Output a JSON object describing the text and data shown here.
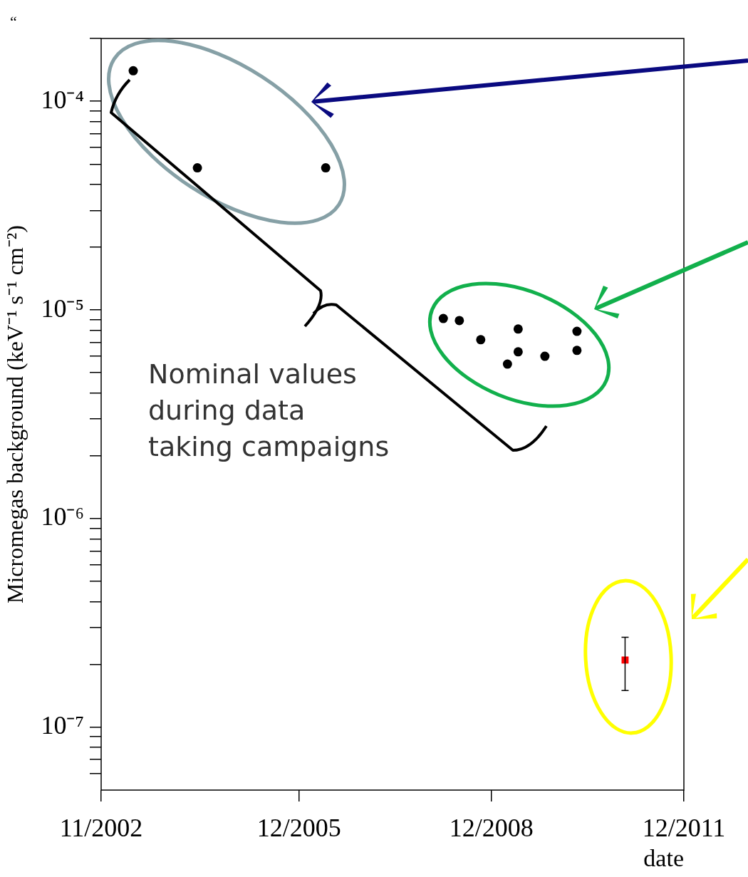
{
  "chart_data": {
    "type": "scatter",
    "ylabel": "Micromegas background (keV⁻¹ s⁻¹ cm⁻²)",
    "xlabel": "date",
    "annotations": [
      "Nominal values during data taking campaigns",
      "“"
    ],
    "log": "y",
    "grid": false,
    "legend": false,
    "xlim": [
      "2002-11",
      "2011-12"
    ],
    "xticks": [
      {
        "value": "2002-11",
        "label": "11/2002"
      },
      {
        "value": "2005-12",
        "label": "12/2005"
      },
      {
        "value": "2008-12",
        "label": "12/2008"
      },
      {
        "value": "2011-12",
        "label": "12/2011"
      }
    ],
    "ylim": [
      5e-08,
      0.0002
    ],
    "yticks": [
      {
        "value": 6e-08,
        "label": null
      },
      {
        "value": 7e-08,
        "label": null
      },
      {
        "value": 8e-08,
        "label": null
      },
      {
        "value": 9e-08,
        "label": null
      },
      {
        "value": 1e-07,
        "label": "10⁻⁷"
      },
      {
        "value": 2e-07,
        "label": null
      },
      {
        "value": 3e-07,
        "label": null
      },
      {
        "value": 4e-07,
        "label": null
      },
      {
        "value": 5e-07,
        "label": null
      },
      {
        "value": 6e-07,
        "label": null
      },
      {
        "value": 7e-07,
        "label": null
      },
      {
        "value": 8e-07,
        "label": null
      },
      {
        "value": 9e-07,
        "label": null
      },
      {
        "value": 1e-06,
        "label": "10⁻⁶"
      },
      {
        "value": 2e-06,
        "label": null
      },
      {
        "value": 3e-06,
        "label": null
      },
      {
        "value": 4e-06,
        "label": null
      },
      {
        "value": 5e-06,
        "label": null
      },
      {
        "value": 6e-06,
        "label": null
      },
      {
        "value": 7e-06,
        "label": null
      },
      {
        "value": 8e-06,
        "label": null
      },
      {
        "value": 9e-06,
        "label": null
      },
      {
        "value": 1e-05,
        "label": "10⁻⁵"
      },
      {
        "value": 2e-05,
        "label": null
      },
      {
        "value": 3e-05,
        "label": null
      },
      {
        "value": 4e-05,
        "label": null
      },
      {
        "value": 5e-05,
        "label": null
      },
      {
        "value": 6e-05,
        "label": null
      },
      {
        "value": 7e-05,
        "label": null
      },
      {
        "value": 8e-05,
        "label": null
      },
      {
        "value": 9e-05,
        "label": null
      },
      {
        "value": 0.0001,
        "label": "10⁻⁴"
      },
      {
        "value": 0.0002,
        "label": null
      }
    ],
    "series": [
      {
        "color": "#000000",
        "marker": "circle",
        "x": [
          "2003-05",
          "2004-05",
          "2006-05",
          "2008-03",
          "2008-06",
          "2008-10",
          "2009-05",
          "2009-05",
          "2009-03",
          "2009-10",
          "2010-04",
          "2010-04"
        ],
        "values": [
          0.00014,
          4.8e-05,
          4.8e-05,
          9.1e-06,
          8.9e-06,
          7.2e-06,
          8.1e-06,
          6.3e-06,
          5.5e-06,
          6e-06,
          7.9e-06,
          6.4e-06
        ]
      },
      {
        "color": "#ff0000",
        "marker": "square",
        "x": [
          "2011-01"
        ],
        "values": [
          2.1e-07
        ],
        "errors": [
          [
            1.5e-07,
            2.7e-07
          ]
        ]
      }
    ]
  }
}
